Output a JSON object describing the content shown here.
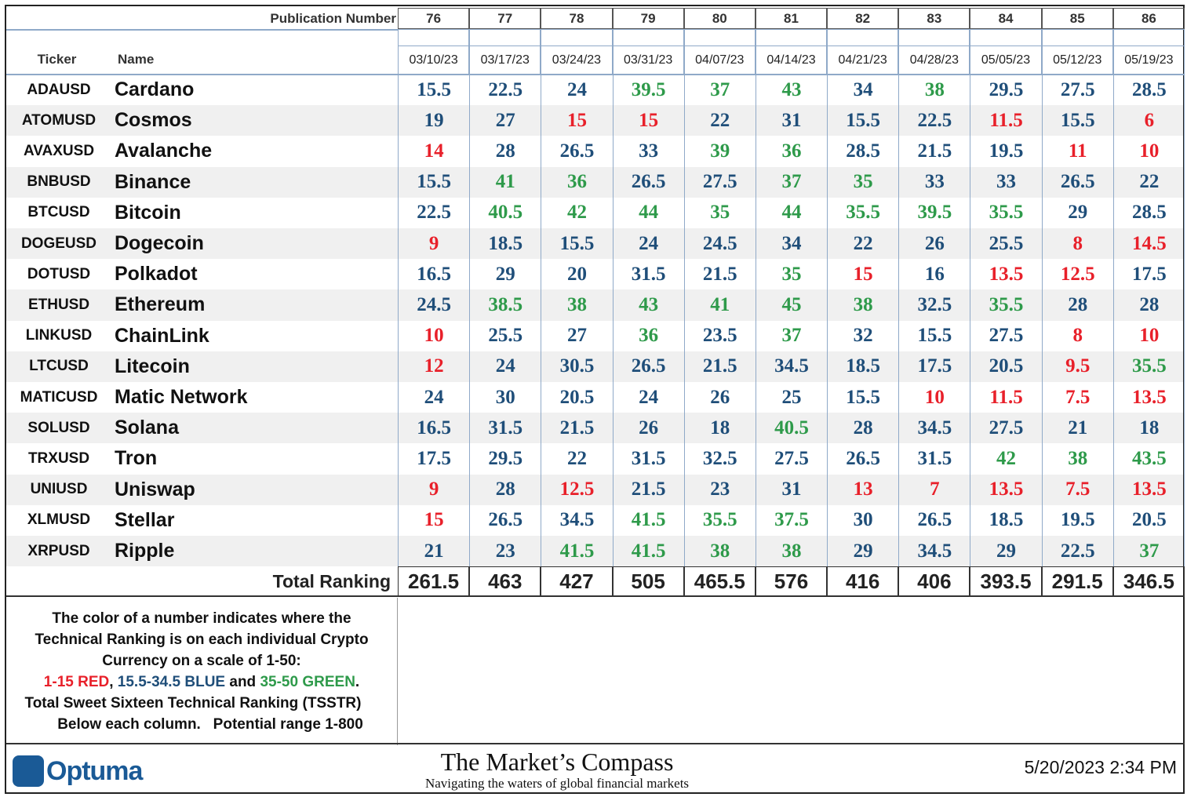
{
  "header": {
    "publication_label": "Publication Number",
    "ticker_label": "Ticker",
    "name_label": "Name",
    "publications": [
      "76",
      "77",
      "78",
      "79",
      "80",
      "81",
      "82",
      "83",
      "84",
      "85",
      "86"
    ],
    "dates": [
      "03/10/23",
      "03/17/23",
      "03/24/23",
      "03/31/23",
      "04/07/23",
      "04/14/23",
      "04/21/23",
      "04/28/23",
      "05/05/23",
      "05/12/23",
      "05/19/23"
    ]
  },
  "table": {
    "rows": [
      {
        "ticker": "ADAUSD",
        "name": "Cardano",
        "values": [
          15.5,
          22.5,
          24,
          39.5,
          37,
          43,
          34,
          38,
          29.5,
          27.5,
          28.5
        ]
      },
      {
        "ticker": "ATOMUSD",
        "name": "Cosmos",
        "values": [
          19,
          27,
          15,
          15,
          22,
          31,
          15.5,
          22.5,
          11.5,
          15.5,
          6
        ]
      },
      {
        "ticker": "AVAXUSD",
        "name": "Avalanche",
        "values": [
          14,
          28,
          26.5,
          33,
          39,
          36,
          28.5,
          21.5,
          19.5,
          11,
          10
        ]
      },
      {
        "ticker": "BNBUSD",
        "name": "Binance",
        "values": [
          15.5,
          41,
          36,
          26.5,
          27.5,
          37,
          35,
          33,
          33,
          26.5,
          22
        ]
      },
      {
        "ticker": "BTCUSD",
        "name": "Bitcoin",
        "values": [
          22.5,
          40.5,
          42,
          44,
          35,
          44,
          35.5,
          39.5,
          35.5,
          29,
          28.5
        ]
      },
      {
        "ticker": "DOGEUSD",
        "name": "Dogecoin",
        "values": [
          9,
          18.5,
          15.5,
          24,
          24.5,
          34,
          22,
          26,
          25.5,
          8,
          14.5
        ]
      },
      {
        "ticker": "DOTUSD",
        "name": "Polkadot",
        "values": [
          16.5,
          29,
          20,
          31.5,
          21.5,
          35,
          15,
          16,
          13.5,
          12.5,
          17.5
        ]
      },
      {
        "ticker": "ETHUSD",
        "name": "Ethereum",
        "values": [
          24.5,
          38.5,
          38,
          43,
          41,
          45,
          38,
          32.5,
          35.5,
          28,
          28
        ]
      },
      {
        "ticker": "LINKUSD",
        "name": "ChainLink",
        "values": [
          10,
          25.5,
          27,
          36,
          23.5,
          37,
          32,
          15.5,
          27.5,
          8,
          10
        ]
      },
      {
        "ticker": "LTCUSD",
        "name": "Litecoin",
        "values": [
          12,
          24,
          30.5,
          26.5,
          21.5,
          34.5,
          18.5,
          17.5,
          20.5,
          9.5,
          35.5
        ]
      },
      {
        "ticker": "MATICUSD",
        "name": "Matic Network",
        "values": [
          24,
          30,
          20.5,
          24,
          26,
          25,
          15.5,
          10,
          11.5,
          7.5,
          13.5
        ]
      },
      {
        "ticker": "SOLUSD",
        "name": "Solana",
        "values": [
          16.5,
          31.5,
          21.5,
          26,
          18,
          40.5,
          28,
          34.5,
          27.5,
          21,
          18
        ]
      },
      {
        "ticker": "TRXUSD",
        "name": "Tron",
        "values": [
          17.5,
          29.5,
          22,
          31.5,
          32.5,
          27.5,
          26.5,
          31.5,
          42,
          38,
          43.5
        ]
      },
      {
        "ticker": "UNIUSD",
        "name": "Uniswap",
        "values": [
          9,
          28,
          12.5,
          21.5,
          23,
          31,
          13,
          7,
          13.5,
          7.5,
          13.5
        ]
      },
      {
        "ticker": "XLMUSD",
        "name": "Stellar",
        "values": [
          15,
          26.5,
          34.5,
          41.5,
          35.5,
          37.5,
          30,
          26.5,
          18.5,
          19.5,
          20.5
        ]
      },
      {
        "ticker": "XRPUSD",
        "name": "Ripple",
        "values": [
          21,
          23,
          41.5,
          41.5,
          38,
          38,
          29,
          34.5,
          29,
          22.5,
          37
        ]
      }
    ],
    "total_label": "Total Ranking",
    "totals": [
      261.5,
      463,
      427,
      505,
      465.5,
      576,
      416,
      406,
      393.5,
      291.5,
      346.5
    ]
  },
  "note": {
    "intro": "The color of a number indicates where the Technical Ranking is on each individual Crypto Currency on a scale of 1-50:",
    "scales": [
      {
        "range": "1-15",
        "label": "RED",
        "color": "#e8202a"
      },
      {
        "range": "15.5-34.5",
        "label": "BLUE",
        "color": "#1f4e79"
      },
      {
        "range": "35-50",
        "label": "GREEN",
        "color": "#2e9a4a"
      }
    ],
    "joins": [
      ", ",
      " and ",
      "."
    ],
    "outro": "Total Sweet Sixteen Technical Ranking (TSSTR) Below each column.   Potential range 1-800"
  },
  "footer": {
    "logo": "Optuma",
    "brand": "The Market’s Compass",
    "tagline": "Navigating the waters of global financial markets",
    "timestamp": "5/20/2023 2:34 PM"
  }
}
